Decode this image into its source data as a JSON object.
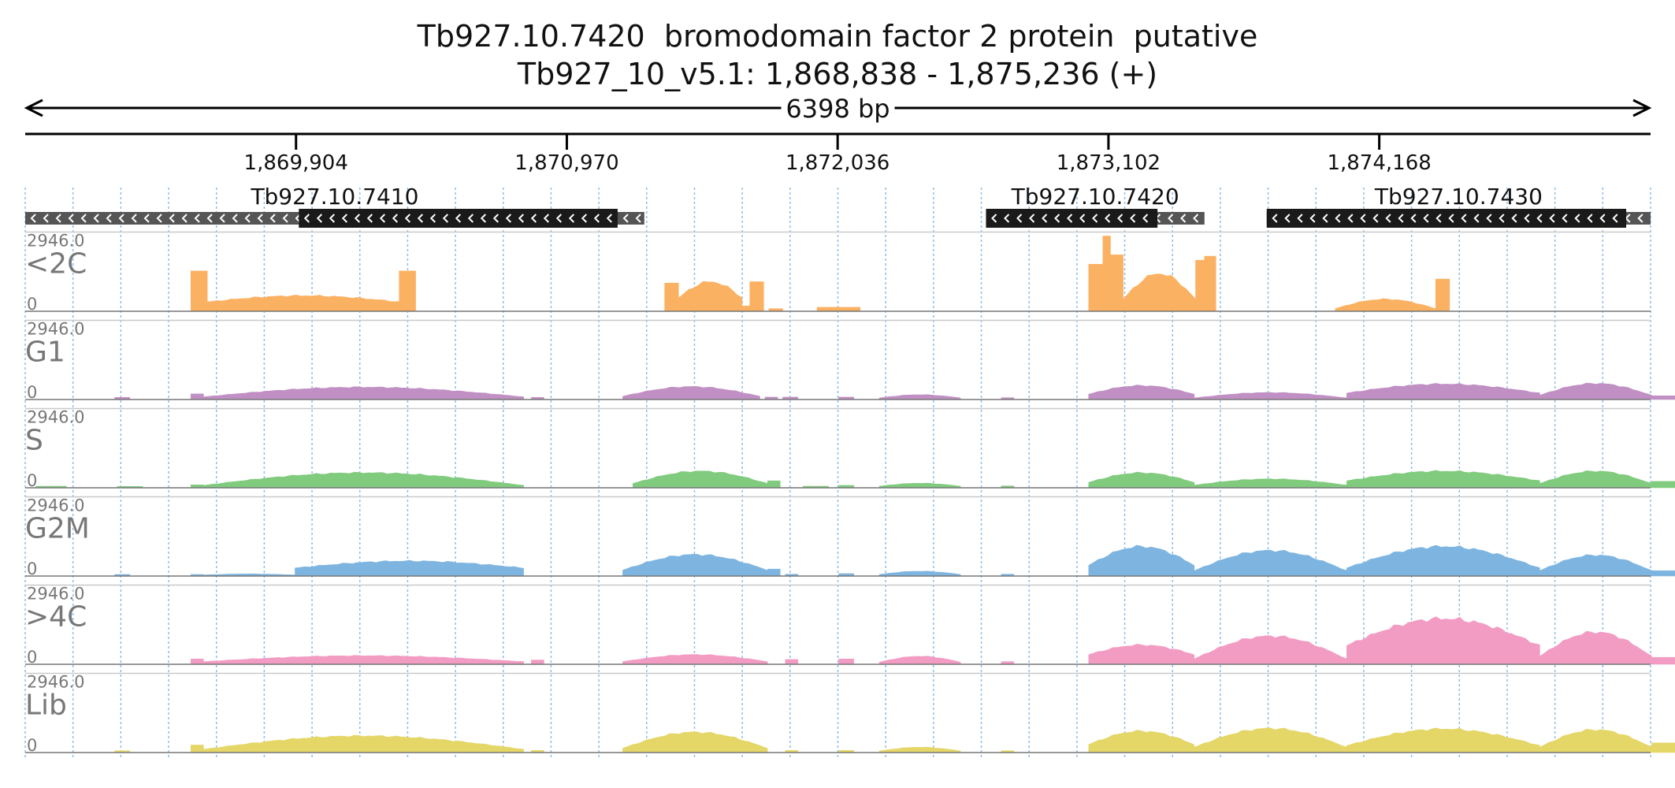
{
  "chart_data": {
    "type": "area",
    "title": "Tb927.10.7420  bromodomain factor 2 protein  putative",
    "subtitle": "Tb927_10_v5.1: 1,868,838 - 1,875,236 (+)",
    "span_label": "6398 bp",
    "region": {
      "start": 1868838,
      "end": 1875236
    },
    "ticks": [
      {
        "pos": 1869904,
        "label": "1,869,904"
      },
      {
        "pos": 1870970,
        "label": "1,870,970"
      },
      {
        "pos": 1872036,
        "label": "1,872,036"
      },
      {
        "pos": 1873102,
        "label": "1,873,102"
      },
      {
        "pos": 1874168,
        "label": "1,874,168"
      }
    ],
    "genes": [
      {
        "name": "Tb927.10.7410",
        "start": 1868838,
        "end": 1871275,
        "cds_start": 1869915,
        "cds_end": 1871170,
        "strand": "-"
      },
      {
        "name": "Tb927.10.7420",
        "start": 1872620,
        "end": 1873480,
        "cds_start": 1872620,
        "cds_end": 1873295,
        "strand": "-"
      },
      {
        "name": "Tb927.10.7430",
        "start": 1873725,
        "end": 1875236,
        "cds_start": 1873725,
        "cds_end": 1875140,
        "strand": "-"
      }
    ],
    "ylim": [
      0,
      2946.0
    ],
    "y_max_label": "2946.0",
    "y_min_label": "0",
    "tracks": [
      {
        "name": "<2C",
        "color": "#FBB162",
        "segments": [
          {
            "start": 1869490,
            "end": 1869555,
            "shape": "flat",
            "values": [
              1500
            ]
          },
          {
            "start": 1869555,
            "end": 1870310,
            "shape": "dome",
            "values": [
              350,
              580
            ]
          },
          {
            "start": 1870310,
            "end": 1870375,
            "shape": "flat",
            "values": [
              1500
            ]
          },
          {
            "start": 1871355,
            "end": 1871410,
            "shape": "flat",
            "values": [
              1050
            ]
          },
          {
            "start": 1871410,
            "end": 1871660,
            "shape": "dome",
            "values": [
              500,
              1100
            ]
          },
          {
            "start": 1871660,
            "end": 1871690,
            "shape": "flat",
            "values": [
              200
            ]
          },
          {
            "start": 1871690,
            "end": 1871745,
            "shape": "flat",
            "values": [
              1100
            ]
          },
          {
            "start": 1871765,
            "end": 1871820,
            "shape": "flat",
            "values": [
              100
            ]
          },
          {
            "start": 1871955,
            "end": 1872125,
            "shape": "flat",
            "values": [
              150
            ]
          },
          {
            "start": 1873024,
            "end": 1873080,
            "shape": "flat",
            "values": [
              1750
            ]
          },
          {
            "start": 1873080,
            "end": 1873110,
            "shape": "flat",
            "values": [
              2800
            ]
          },
          {
            "start": 1873110,
            "end": 1873160,
            "shape": "flat",
            "values": [
              2100
            ]
          },
          {
            "start": 1873160,
            "end": 1873445,
            "shape": "dome",
            "values": [
              450,
              1400
            ]
          },
          {
            "start": 1873445,
            "end": 1873480,
            "shape": "flat",
            "values": [
              1900
            ]
          },
          {
            "start": 1873480,
            "end": 1873525,
            "shape": "flat",
            "values": [
              2050
            ]
          },
          {
            "start": 1873995,
            "end": 1874390,
            "shape": "dome",
            "values": [
              100,
              450
            ]
          },
          {
            "start": 1874390,
            "end": 1874445,
            "shape": "flat",
            "values": [
              1200
            ]
          }
        ]
      },
      {
        "name": "G1",
        "color": "#C08FC3",
        "segments": [
          {
            "start": 1869190,
            "end": 1869250,
            "shape": "flat",
            "values": [
              80
            ]
          },
          {
            "start": 1869490,
            "end": 1869540,
            "shape": "flat",
            "values": [
              210
            ]
          },
          {
            "start": 1869540,
            "end": 1870800,
            "shape": "dome",
            "values": [
              100,
              460
            ]
          },
          {
            "start": 1870830,
            "end": 1870880,
            "shape": "flat",
            "values": [
              80
            ]
          },
          {
            "start": 1871190,
            "end": 1871730,
            "shape": "dome",
            "values": [
              120,
              480
            ]
          },
          {
            "start": 1871750,
            "end": 1871800,
            "shape": "flat",
            "values": [
              90
            ]
          },
          {
            "start": 1871820,
            "end": 1871880,
            "shape": "flat",
            "values": [
              90
            ]
          },
          {
            "start": 1872040,
            "end": 1872100,
            "shape": "flat",
            "values": [
              90
            ]
          },
          {
            "start": 1872200,
            "end": 1872520,
            "shape": "dome",
            "values": [
              60,
              180
            ]
          },
          {
            "start": 1872680,
            "end": 1872730,
            "shape": "flat",
            "values": [
              70
            ]
          },
          {
            "start": 1873024,
            "end": 1873440,
            "shape": "dome",
            "values": [
              200,
              520
            ]
          },
          {
            "start": 1873440,
            "end": 1874040,
            "shape": "dome",
            "values": [
              60,
              260
            ]
          },
          {
            "start": 1874040,
            "end": 1874800,
            "shape": "dome",
            "values": [
              240,
              580
            ]
          },
          {
            "start": 1874800,
            "end": 1875240,
            "shape": "dome",
            "values": [
              160,
              600
            ]
          },
          {
            "start": 1875240,
            "end": 1875400,
            "shape": "flat",
            "values": [
              140
            ]
          }
        ]
      },
      {
        "name": "S",
        "color": "#80CB7D",
        "segments": [
          {
            "start": 1868880,
            "end": 1869000,
            "shape": "flat",
            "values": [
              60
            ]
          },
          {
            "start": 1869200,
            "end": 1869300,
            "shape": "flat",
            "values": [
              50
            ]
          },
          {
            "start": 1869490,
            "end": 1869540,
            "shape": "flat",
            "values": [
              110
            ]
          },
          {
            "start": 1869540,
            "end": 1870800,
            "shape": "dome",
            "values": [
              90,
              560
            ]
          },
          {
            "start": 1871230,
            "end": 1871760,
            "shape": "dome",
            "values": [
              160,
              620
            ]
          },
          {
            "start": 1871760,
            "end": 1871810,
            "shape": "flat",
            "values": [
              260
            ]
          },
          {
            "start": 1871900,
            "end": 1872000,
            "shape": "flat",
            "values": [
              60
            ]
          },
          {
            "start": 1872040,
            "end": 1872100,
            "shape": "flat",
            "values": [
              90
            ]
          },
          {
            "start": 1872200,
            "end": 1872520,
            "shape": "dome",
            "values": [
              60,
              170
            ]
          },
          {
            "start": 1872680,
            "end": 1872730,
            "shape": "flat",
            "values": [
              70
            ]
          },
          {
            "start": 1873024,
            "end": 1873440,
            "shape": "dome",
            "values": [
              200,
              560
            ]
          },
          {
            "start": 1873440,
            "end": 1874040,
            "shape": "dome",
            "values": [
              100,
              330
            ]
          },
          {
            "start": 1874040,
            "end": 1874800,
            "shape": "dome",
            "values": [
              260,
              620
            ]
          },
          {
            "start": 1874800,
            "end": 1875240,
            "shape": "dome",
            "values": [
              160,
              620
            ]
          },
          {
            "start": 1875240,
            "end": 1875400,
            "shape": "flat",
            "values": [
              240
            ]
          }
        ]
      },
      {
        "name": "G2M",
        "color": "#7EB5E0",
        "segments": [
          {
            "start": 1869190,
            "end": 1869250,
            "shape": "flat",
            "values": [
              60
            ]
          },
          {
            "start": 1869490,
            "end": 1869540,
            "shape": "flat",
            "values": [
              60
            ]
          },
          {
            "start": 1869540,
            "end": 1869900,
            "shape": "dome",
            "values": [
              40,
              80
            ]
          },
          {
            "start": 1869900,
            "end": 1870800,
            "shape": "dome",
            "values": [
              300,
              560
            ]
          },
          {
            "start": 1871190,
            "end": 1871760,
            "shape": "dome",
            "values": [
              220,
              800
            ]
          },
          {
            "start": 1871760,
            "end": 1871810,
            "shape": "flat",
            "values": [
              260
            ]
          },
          {
            "start": 1871830,
            "end": 1871880,
            "shape": "flat",
            "values": [
              70
            ]
          },
          {
            "start": 1872040,
            "end": 1872100,
            "shape": "flat",
            "values": [
              90
            ]
          },
          {
            "start": 1872200,
            "end": 1872520,
            "shape": "dome",
            "values": [
              60,
              180
            ]
          },
          {
            "start": 1872680,
            "end": 1872730,
            "shape": "flat",
            "values": [
              70
            ]
          },
          {
            "start": 1873024,
            "end": 1873440,
            "shape": "dome",
            "values": [
              400,
              1100
            ]
          },
          {
            "start": 1873440,
            "end": 1874040,
            "shape": "dome",
            "values": [
              200,
              950
            ]
          },
          {
            "start": 1874040,
            "end": 1874800,
            "shape": "dome",
            "values": [
              300,
              1100
            ]
          },
          {
            "start": 1874800,
            "end": 1875240,
            "shape": "dome",
            "values": [
              200,
              780
            ]
          },
          {
            "start": 1875240,
            "end": 1875400,
            "shape": "flat",
            "values": [
              200
            ]
          }
        ]
      },
      {
        "name": ">4C",
        "color": "#F29CC4",
        "segments": [
          {
            "start": 1869490,
            "end": 1869540,
            "shape": "flat",
            "values": [
              200
            ]
          },
          {
            "start": 1869540,
            "end": 1870800,
            "shape": "dome",
            "values": [
              100,
              320
            ]
          },
          {
            "start": 1870830,
            "end": 1870880,
            "shape": "flat",
            "values": [
              160
            ]
          },
          {
            "start": 1871190,
            "end": 1871760,
            "shape": "dome",
            "values": [
              100,
              360
            ]
          },
          {
            "start": 1871830,
            "end": 1871880,
            "shape": "flat",
            "values": [
              180
            ]
          },
          {
            "start": 1872040,
            "end": 1872100,
            "shape": "flat",
            "values": [
              200
            ]
          },
          {
            "start": 1872200,
            "end": 1872520,
            "shape": "dome",
            "values": [
              80,
              300
            ]
          },
          {
            "start": 1872680,
            "end": 1872730,
            "shape": "flat",
            "values": [
              100
            ]
          },
          {
            "start": 1873024,
            "end": 1873440,
            "shape": "dome",
            "values": [
              360,
              720
            ]
          },
          {
            "start": 1873440,
            "end": 1874040,
            "shape": "dome",
            "values": [
              200,
              1050
            ]
          },
          {
            "start": 1874040,
            "end": 1874800,
            "shape": "dome",
            "values": [
              700,
              1700
            ]
          },
          {
            "start": 1874800,
            "end": 1875240,
            "shape": "dome",
            "values": [
              300,
              1200
            ]
          },
          {
            "start": 1875240,
            "end": 1875400,
            "shape": "flat",
            "values": [
              260
            ]
          }
        ]
      },
      {
        "name": "Lib",
        "color": "#E5D668",
        "segments": [
          {
            "start": 1869190,
            "end": 1869250,
            "shape": "flat",
            "values": [
              70
            ]
          },
          {
            "start": 1869490,
            "end": 1869540,
            "shape": "flat",
            "values": [
              280
            ]
          },
          {
            "start": 1869540,
            "end": 1870800,
            "shape": "dome",
            "values": [
              120,
              620
            ]
          },
          {
            "start": 1870830,
            "end": 1870880,
            "shape": "flat",
            "values": [
              80
            ]
          },
          {
            "start": 1871190,
            "end": 1871760,
            "shape": "dome",
            "values": [
              160,
              760
            ]
          },
          {
            "start": 1871830,
            "end": 1871880,
            "shape": "flat",
            "values": [
              80
            ]
          },
          {
            "start": 1872040,
            "end": 1872100,
            "shape": "flat",
            "values": [
              80
            ]
          },
          {
            "start": 1872200,
            "end": 1872520,
            "shape": "dome",
            "values": [
              60,
              200
            ]
          },
          {
            "start": 1872680,
            "end": 1872730,
            "shape": "flat",
            "values": [
              70
            ]
          },
          {
            "start": 1873024,
            "end": 1873440,
            "shape": "dome",
            "values": [
              300,
              800
            ]
          },
          {
            "start": 1873440,
            "end": 1874040,
            "shape": "dome",
            "values": [
              200,
              900
            ]
          },
          {
            "start": 1874040,
            "end": 1874800,
            "shape": "dome",
            "values": [
              260,
              880
            ]
          },
          {
            "start": 1874800,
            "end": 1875240,
            "shape": "dome",
            "values": [
              200,
              850
            ]
          },
          {
            "start": 1875240,
            "end": 1875400,
            "shape": "flat",
            "values": [
              360
            ]
          }
        ]
      }
    ]
  }
}
